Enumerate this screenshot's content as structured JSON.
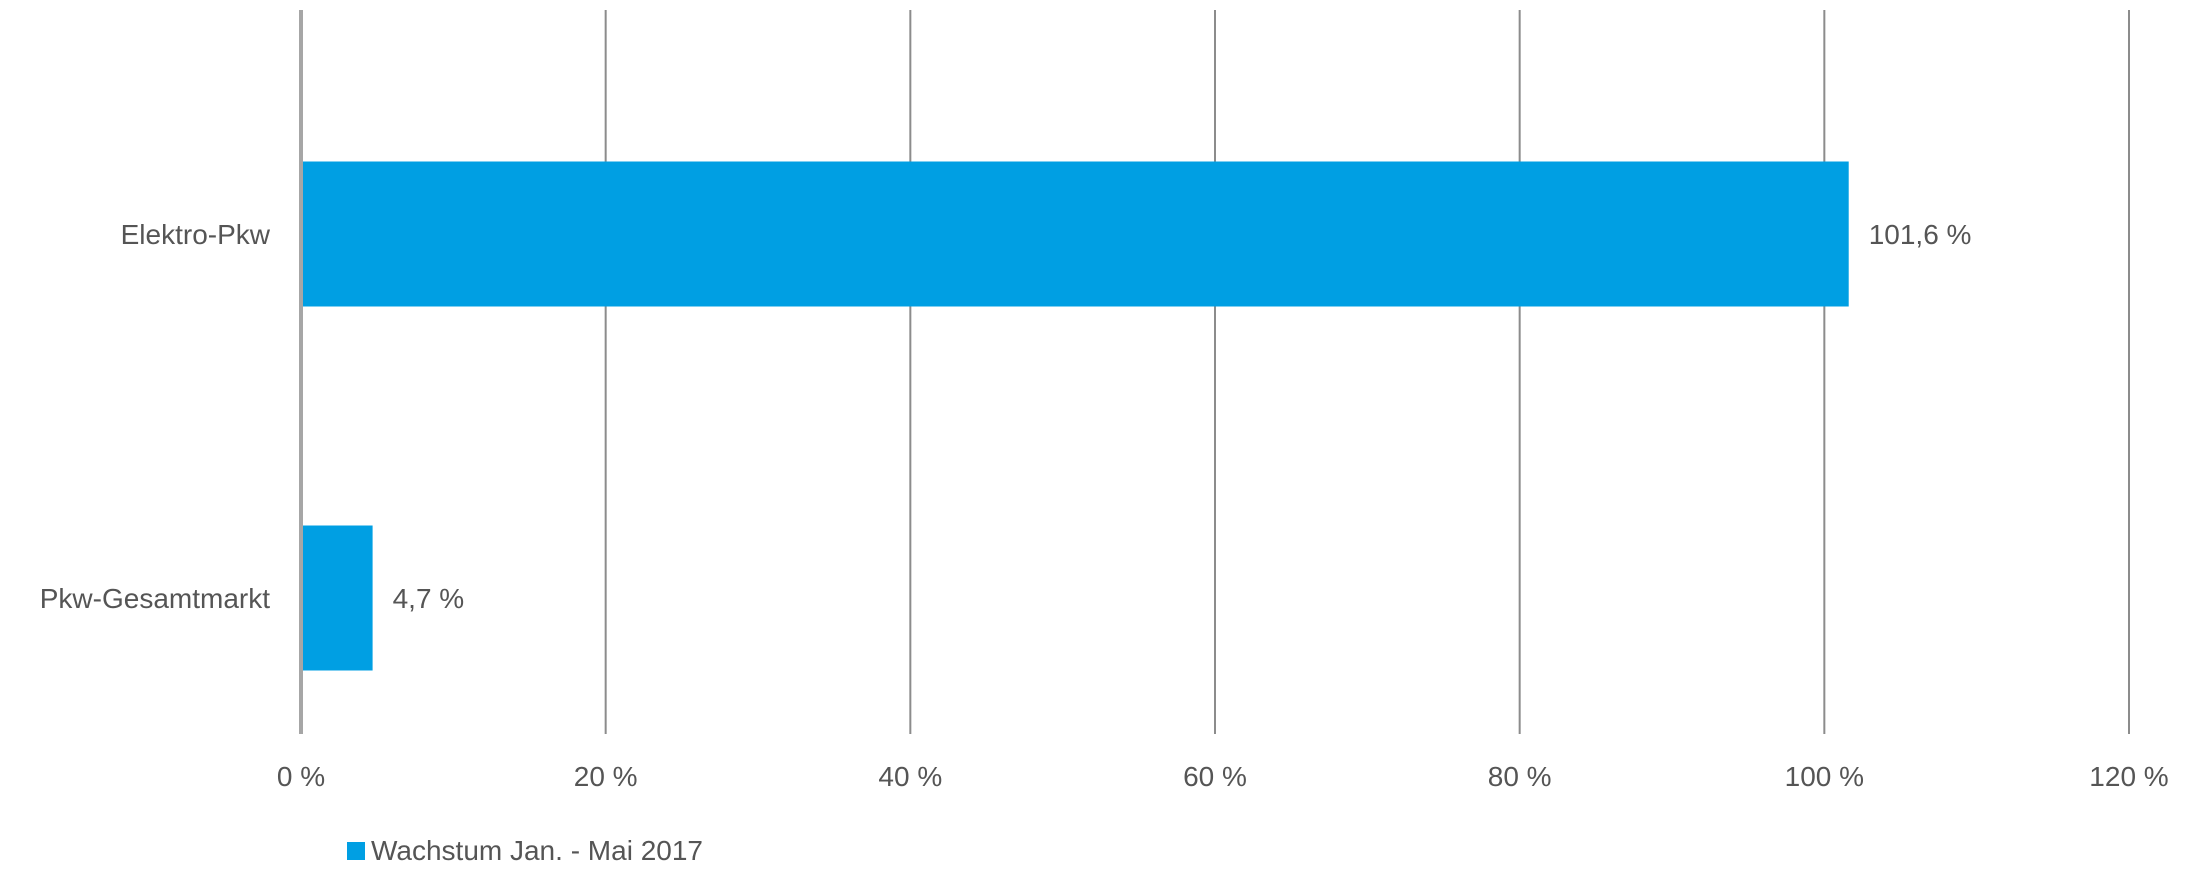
{
  "chart_data": {
    "type": "bar",
    "orientation": "horizontal",
    "title": "",
    "xlabel": "",
    "ylabel": "",
    "categories": [
      "Elektro-Pkw",
      "Pkw-Gesamtmarkt"
    ],
    "series": [
      {
        "name": "Wachstum Jan. - Mai 2017",
        "values": [
          101.6,
          4.7
        ],
        "data_labels": [
          "101,6 %",
          "4,7 %"
        ],
        "color": "#009fe3"
      }
    ],
    "xlim": [
      0,
      120
    ],
    "xticks": [
      0,
      20,
      40,
      60,
      80,
      100,
      120
    ],
    "xtick_labels": [
      "0 %",
      "20 %",
      "40 %",
      "60 %",
      "80 %",
      "100 %",
      "120 %"
    ],
    "grid": "vertical",
    "legend": "bottom-left"
  },
  "colors": {
    "bar": "#009fe3",
    "grid": "#8c8c8c",
    "axis": "#a6a6a6",
    "text": "#555555"
  }
}
